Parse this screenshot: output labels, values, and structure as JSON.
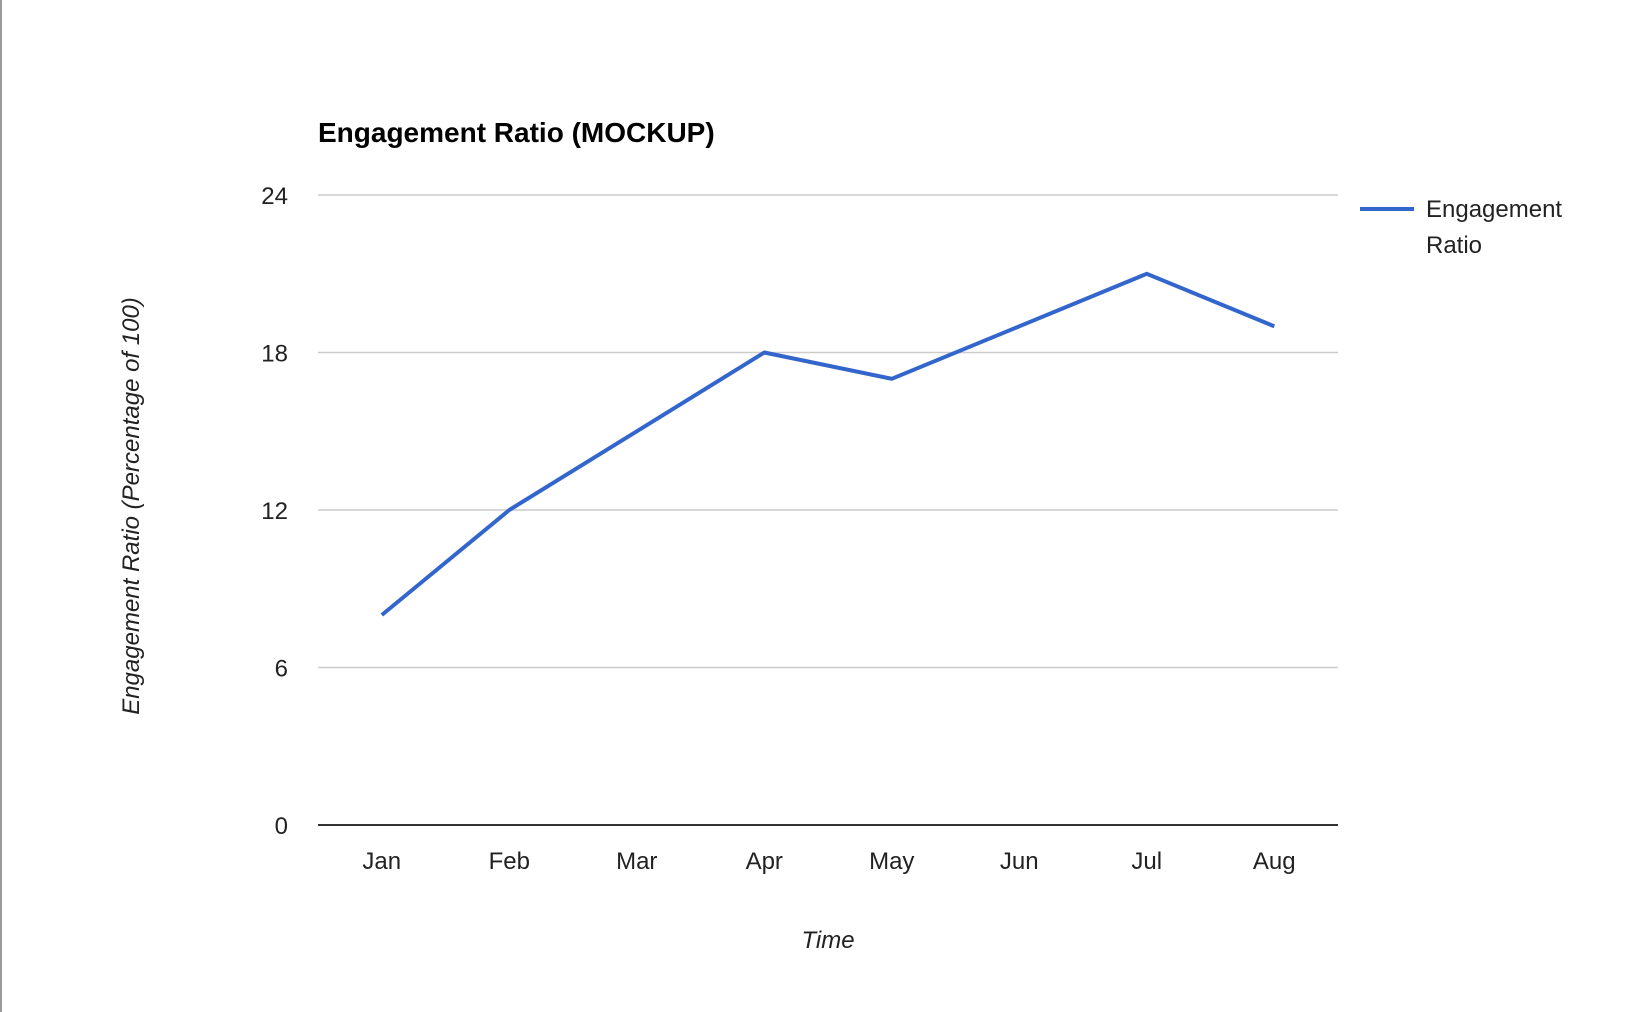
{
  "chart_data": {
    "type": "line",
    "title": "Engagement Ratio (MOCKUP)",
    "xlabel": "Time",
    "ylabel": "Engagement Ratio (Percentage of 100)",
    "categories": [
      "Jan",
      "Feb",
      "Mar",
      "Apr",
      "May",
      "Jun",
      "Jul",
      "Aug"
    ],
    "series": [
      {
        "name": "Engagement Ratio",
        "legend_lines": [
          "Engagement",
          "Ratio"
        ],
        "color": "#3366cc",
        "values": [
          8,
          12,
          15,
          18,
          17,
          19,
          21,
          19
        ]
      }
    ],
    "ylim": [
      0,
      24
    ],
    "yticks": [
      "0",
      "6",
      "12",
      "18",
      "24"
    ],
    "grid": true,
    "legend": "right"
  }
}
